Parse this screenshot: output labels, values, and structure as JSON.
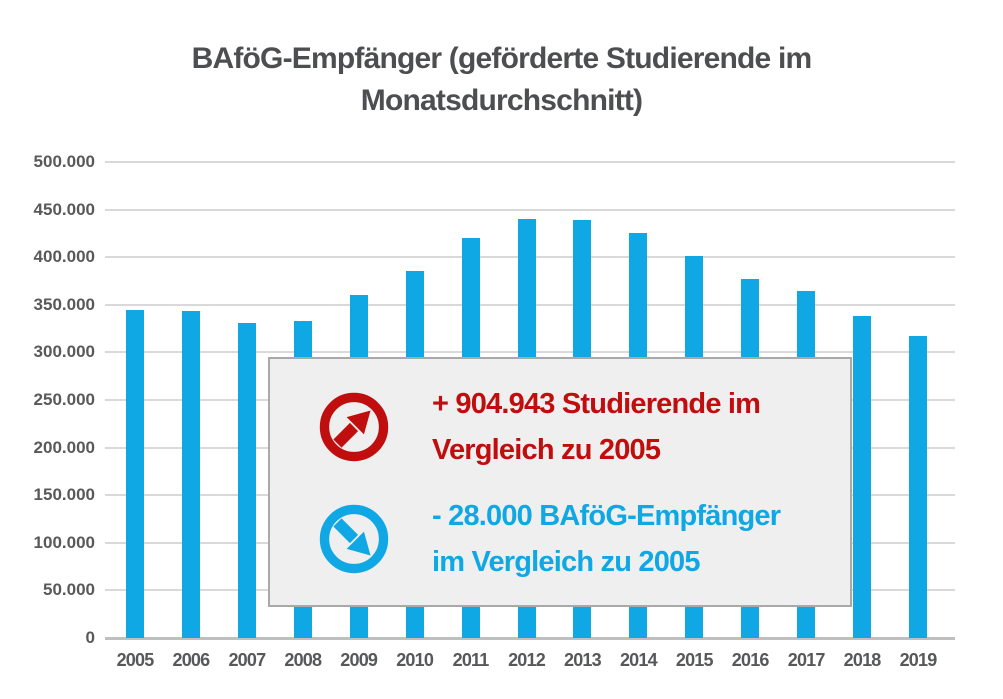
{
  "title": {
    "line1": "BAföG-Empfänger (geförderte Studierende im",
    "line2": "Monatsdurchschnitt)"
  },
  "chart_data": {
    "type": "bar",
    "title": "BAföG-Empfänger (geförderte Studierende im Monatsdurchschnitt)",
    "categories": [
      "2005",
      "2006",
      "2007",
      "2008",
      "2009",
      "2010",
      "2011",
      "2012",
      "2013",
      "2014",
      "2015",
      "2016",
      "2017",
      "2018",
      "2019"
    ],
    "values": [
      345000,
      343000,
      331000,
      333000,
      360000,
      386000,
      420000,
      440000,
      439000,
      425000,
      401000,
      377000,
      365000,
      338000,
      317000
    ],
    "xlabel": "",
    "ylabel": "",
    "ylim": [
      0,
      500000
    ],
    "ytick_step": 50000,
    "ytick_labels": [
      "0",
      "50.000",
      "100.000",
      "150.000",
      "200.000",
      "250.000",
      "300.000",
      "350.000",
      "400.000",
      "450.000",
      "500.000"
    ],
    "grid": true,
    "legend": false,
    "bar_color": "#0fa8e4"
  },
  "annotations": {
    "increase": {
      "icon": "arrow-up-right-circle-icon",
      "color": "#c00d0d",
      "line1": "+ 904.943 Studierende im",
      "line2": "Vergleich zu 2005"
    },
    "decrease": {
      "icon": "arrow-down-right-circle-icon",
      "color": "#0fa8e4",
      "line1": "- 28.000 BAföG-Empfänger",
      "line2": "im Vergleich zu 2005"
    }
  },
  "colors": {
    "bar": "#0fa8e4",
    "annotation_red": "#c00d0d",
    "annotation_blue": "#0fa8e4",
    "grid": "#d9d9d9",
    "axis_line": "#bfbfbf",
    "tick_label": "#595959",
    "title": "#4d4e50",
    "box_bg": "#efefef",
    "box_border": "#a9a9a9"
  }
}
